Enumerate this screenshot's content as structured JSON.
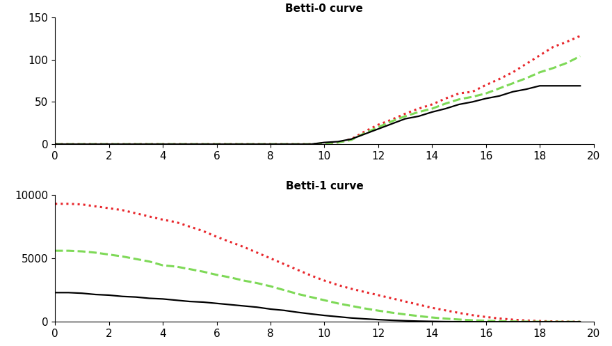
{
  "chart_data": [
    {
      "type": "line",
      "title": "Betti-0 curve",
      "x": [
        0,
        0.5,
        1,
        1.5,
        2,
        2.5,
        3,
        3.5,
        4,
        4.5,
        5,
        5.5,
        6,
        6.5,
        7,
        7.5,
        8,
        8.5,
        9,
        9.5,
        10,
        10.5,
        11,
        11.5,
        12,
        12.5,
        13,
        13.5,
        14,
        14.5,
        15,
        15.5,
        16,
        16.5,
        17,
        17.5,
        18,
        18.5,
        19,
        19.5
      ],
      "xlim": [
        0,
        20
      ],
      "xticks": [
        0,
        2,
        4,
        6,
        8,
        10,
        12,
        14,
        16,
        18,
        20
      ],
      "ylim": [
        0,
        150
      ],
      "yticks": [
        0,
        50,
        100,
        150
      ],
      "series": [
        {
          "color": "#e8262b",
          "line_style": "dotted",
          "values": [
            0,
            0,
            0,
            0,
            0,
            0,
            0,
            0,
            0,
            0,
            0,
            0,
            0,
            0,
            0,
            0,
            0,
            0,
            0,
            0,
            1,
            2,
            6,
            15,
            23,
            29,
            36,
            42,
            47,
            54,
            60,
            62,
            70,
            77,
            85,
            95,
            105,
            115,
            121,
            128
          ]
        },
        {
          "color": "#7ed957",
          "line_style": "dashed",
          "values": [
            0,
            0,
            0,
            0,
            0,
            0,
            0,
            0,
            0,
            0,
            0,
            0,
            0,
            0,
            0,
            0,
            0,
            0,
            0,
            0,
            1,
            2,
            5,
            13,
            20,
            27,
            33,
            38,
            42,
            48,
            53,
            56,
            60,
            66,
            72,
            78,
            85,
            90,
            96,
            104
          ]
        },
        {
          "color": "#000000",
          "line_style": "solid",
          "values": [
            0,
            0,
            0,
            0,
            0,
            0,
            0,
            0,
            0,
            0,
            0,
            0,
            0,
            0,
            0,
            0,
            0,
            0,
            0,
            0,
            2,
            3,
            6,
            12,
            18,
            24,
            30,
            33,
            38,
            42,
            47,
            50,
            54,
            57,
            62,
            65,
            69,
            69,
            69,
            69
          ]
        }
      ]
    },
    {
      "type": "line",
      "title": "Betti-1 curve",
      "x": [
        0,
        0.5,
        1,
        1.5,
        2,
        2.5,
        3,
        3.5,
        4,
        4.5,
        5,
        5.5,
        6,
        6.5,
        7,
        7.5,
        8,
        8.5,
        9,
        9.5,
        10,
        10.5,
        11,
        11.5,
        12,
        12.5,
        13,
        13.5,
        14,
        14.5,
        15,
        15.5,
        16,
        16.5,
        17,
        17.5,
        18,
        18.5,
        19,
        19.5
      ],
      "xlim": [
        0,
        20
      ],
      "xticks": [
        0,
        2,
        4,
        6,
        8,
        10,
        12,
        14,
        16,
        18,
        20
      ],
      "ylim": [
        0,
        10000
      ],
      "yticks": [
        0,
        5000,
        10000
      ],
      "series": [
        {
          "color": "#e8262b",
          "line_style": "dotted",
          "values": [
            9300,
            9300,
            9250,
            9100,
            8950,
            8800,
            8550,
            8300,
            8050,
            7850,
            7500,
            7150,
            6700,
            6300,
            5900,
            5450,
            5000,
            4550,
            4100,
            3650,
            3250,
            2900,
            2600,
            2350,
            2100,
            1850,
            1600,
            1350,
            1100,
            900,
            700,
            520,
            380,
            260,
            170,
            100,
            60,
            30,
            10,
            0
          ]
        },
        {
          "color": "#7ed957",
          "line_style": "dashed",
          "values": [
            5600,
            5600,
            5550,
            5450,
            5300,
            5150,
            4950,
            4750,
            4450,
            4350,
            4150,
            3950,
            3700,
            3500,
            3250,
            3050,
            2800,
            2500,
            2200,
            1950,
            1700,
            1450,
            1250,
            1050,
            880,
            720,
            580,
            450,
            340,
            250,
            180,
            120,
            80,
            50,
            30,
            15,
            8,
            3,
            0,
            0
          ]
        },
        {
          "color": "#000000",
          "line_style": "solid",
          "values": [
            2300,
            2300,
            2250,
            2150,
            2100,
            2000,
            1950,
            1850,
            1800,
            1700,
            1600,
            1550,
            1450,
            1350,
            1250,
            1150,
            1000,
            900,
            750,
            620,
            500,
            400,
            300,
            230,
            170,
            120,
            80,
            50,
            30,
            15,
            8,
            3,
            0,
            0,
            0,
            0,
            0,
            0,
            0,
            0
          ]
        }
      ]
    }
  ]
}
